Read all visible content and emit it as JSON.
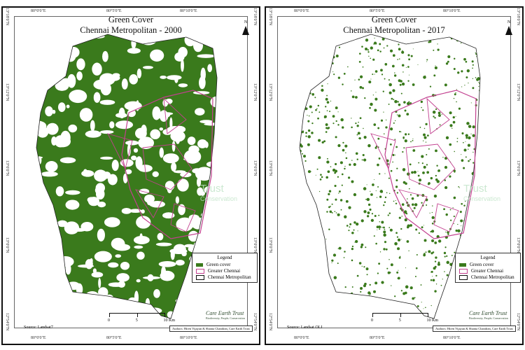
{
  "panels": [
    {
      "title": "Green Cover",
      "subtitle": "Chennai Metropolitan - 2000",
      "source": "Source: Landsat7",
      "mode": "dense"
    },
    {
      "title": "Green Cover",
      "subtitle": "Chennai Metropolitan - 2017",
      "source": "Source: Landsat OLI",
      "mode": "sparse"
    }
  ],
  "lon_labels": [
    "80°0'0\"E",
    "80°5'0\"E",
    "80°10'0\"E"
  ],
  "lat_labels": [
    "13°18'0\"N",
    "13°12'0\"N",
    "13°6'0\"N",
    "13°0'0\"N",
    "12°54'0\"N"
  ],
  "north": "N",
  "legend": {
    "title": "Legend",
    "items": [
      {
        "label": "Green cover",
        "color": "#3a7a1c"
      },
      {
        "label": "Greater Chennai",
        "color": "#c2408f"
      },
      {
        "label": "Chennai Metropolitan",
        "color": "#111111"
      }
    ]
  },
  "scale": {
    "ticks": [
      "0",
      "5",
      "10 Km"
    ]
  },
  "credit": "Authors: Hiren Vijayan & Shanta Chandran, Care Earth Trust",
  "logo": {
    "name": "Care Earth Trust",
    "tagline": "Biodiversity, People, Conservation"
  },
  "watermark": {
    "line1": "Trust",
    "line2": "Conservation"
  },
  "colors": {
    "green": "#3a7a1c",
    "greater_chennai": "#c2408f"
  }
}
